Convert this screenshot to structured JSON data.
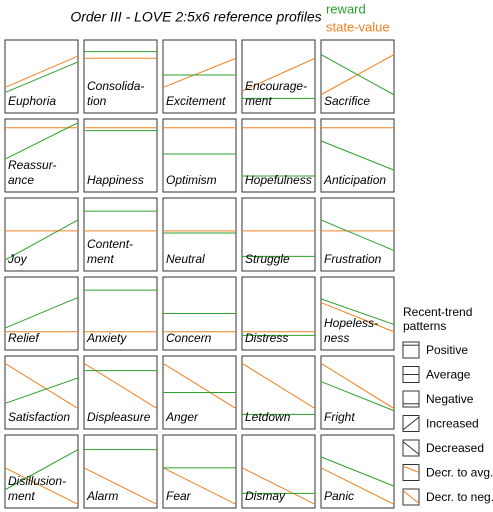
{
  "title": "Order III - LOVE 2:5x6 reference profiles",
  "legend": {
    "reward": "reward",
    "state_value": "state-value"
  },
  "cells": [
    {
      "label": [
        "Euphoria"
      ]
    },
    {
      "label": [
        "Consolida-",
        "tion"
      ]
    },
    {
      "label": [
        "Excitement"
      ]
    },
    {
      "label": [
        "Encourage-",
        "ment"
      ]
    },
    {
      "label": [
        "Sacrifice"
      ]
    },
    {
      "label": [
        "Reassur-",
        "ance"
      ]
    },
    {
      "label": [
        "Happiness"
      ]
    },
    {
      "label": [
        "Optimism"
      ]
    },
    {
      "label": [
        "Hopefulness"
      ]
    },
    {
      "label": [
        "Anticipation"
      ]
    },
    {
      "label": [
        "Joy"
      ]
    },
    {
      "label": [
        "Content-",
        "ment"
      ]
    },
    {
      "label": [
        "Neutral"
      ]
    },
    {
      "label": [
        "Struggle"
      ]
    },
    {
      "label": [
        "Frustration"
      ]
    },
    {
      "label": [
        "Relief"
      ]
    },
    {
      "label": [
        "Anxiety"
      ]
    },
    {
      "label": [
        "Concern"
      ]
    },
    {
      "label": [
        "Distress"
      ]
    },
    {
      "label": [
        "Hopeless-",
        "ness"
      ]
    },
    {
      "label": [
        "Satisfaction"
      ]
    },
    {
      "label": [
        "Displeasure"
      ]
    },
    {
      "label": [
        "Anger"
      ]
    },
    {
      "label": [
        "Letdown"
      ]
    },
    {
      "label": [
        "Fright"
      ]
    },
    {
      "label": [
        "Disillusion-",
        "ment"
      ]
    },
    {
      "label": [
        "Alarm"
      ]
    },
    {
      "label": [
        "Fear"
      ]
    },
    {
      "label": [
        "Dismay"
      ]
    },
    {
      "label": [
        "Panic"
      ]
    }
  ],
  "trend_legend": {
    "title": [
      "Recent-trend",
      "patterns"
    ],
    "items": [
      "Positive",
      "Average",
      "Negative",
      "Increased",
      "Decreased",
      "Decr. to avg.",
      "Decr. to neg."
    ]
  }
}
